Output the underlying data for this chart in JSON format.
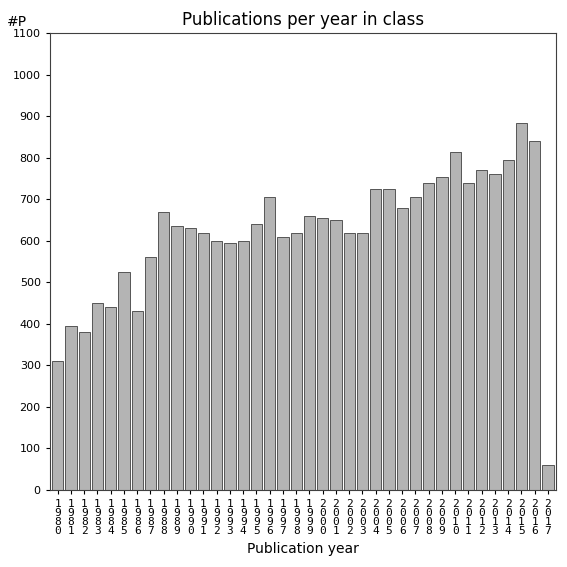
{
  "years": [
    "1980",
    "1981",
    "1982",
    "1983",
    "1984",
    "1985",
    "1986",
    "1987",
    "1988",
    "1989",
    "1990",
    "1991",
    "1992",
    "1993",
    "1994",
    "1995",
    "1996",
    "1997",
    "1998",
    "1999",
    "2000",
    "2001",
    "2002",
    "2003",
    "2004",
    "2005",
    "2006",
    "2007",
    "2008",
    "2009",
    "2010",
    "2011",
    "2012",
    "2013",
    "2014",
    "2015",
    "2016",
    "2017"
  ],
  "values": [
    310,
    395,
    380,
    450,
    440,
    525,
    430,
    560,
    670,
    635,
    630,
    620,
    600,
    595,
    600,
    640,
    705,
    610,
    620,
    660,
    655,
    650,
    620,
    620,
    725,
    725,
    680,
    705,
    740,
    755,
    815,
    740,
    770,
    760,
    795,
    885,
    840,
    60
  ],
  "bar_color": "#b4b4b4",
  "bar_edgecolor": "#404040",
  "title": "Publications per year in class",
  "xlabel": "Publication year",
  "ylabel": "#P",
  "ylim": [
    0,
    1100
  ],
  "yticks": [
    0,
    100,
    200,
    300,
    400,
    500,
    600,
    700,
    800,
    900,
    1000,
    1100
  ],
  "background_color": "#ffffff",
  "title_fontsize": 12,
  "axis_fontsize": 10,
  "tick_fontsize": 8
}
